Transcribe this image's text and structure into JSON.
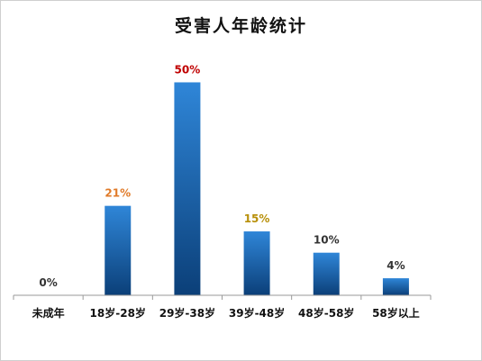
{
  "chart_data": {
    "type": "bar",
    "title": "受害人年龄统计",
    "categories": [
      "未成年",
      "18岁-28岁",
      "29岁-38岁",
      "39岁-48岁",
      "48岁-58岁",
      "58岁以上"
    ],
    "values": [
      0,
      21,
      50,
      15,
      10,
      4
    ],
    "data_labels": [
      "0%",
      "21%",
      "50%",
      "15%",
      "10%",
      "4%"
    ],
    "label_colors": [
      "#333333",
      "#e07a28",
      "#c00000",
      "#b8900a",
      "#333333",
      "#333333"
    ],
    "bar_color_top": "#2f86d8",
    "bar_color_bottom": "#0b3f78",
    "unit": "%",
    "ylim": [
      0,
      52
    ],
    "grid": false,
    "legend": "none"
  }
}
